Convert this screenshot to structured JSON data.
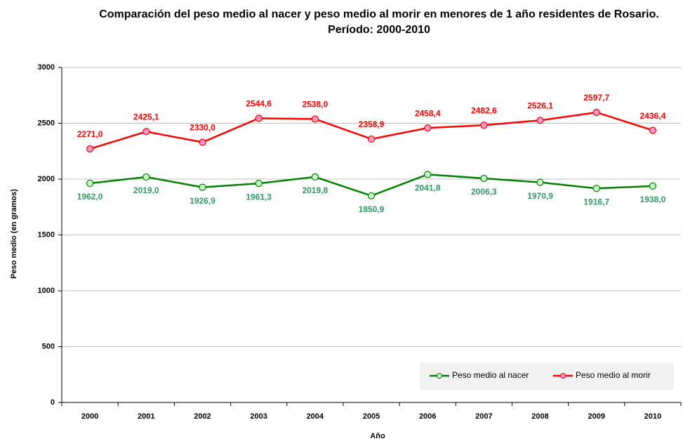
{
  "chart_data": {
    "type": "line",
    "title": "Comparación del peso medio al nacer y peso medio al morir en menores de 1 año residentes de Rosario. Período: 2000-2010",
    "xlabel": "Año",
    "ylabel": "Peso medio (en gramos)",
    "categories": [
      "2000",
      "2001",
      "2002",
      "2003",
      "2004",
      "2005",
      "2006",
      "2007",
      "2008",
      "2009",
      "2010"
    ],
    "series": [
      {
        "name": "Peso medio al nacer",
        "color": "#008000",
        "marker_color": "#ccffcc",
        "label_color": "#339966",
        "values": [
          1962.0,
          2019.0,
          1926.9,
          1961.3,
          2019.8,
          1850.9,
          2041.8,
          2006.3,
          1970.9,
          1916.7,
          1938.0
        ],
        "value_labels": [
          "1962,0",
          "2019,0",
          "1926,9",
          "1961,3",
          "2019,8",
          "1850,9",
          "2041,8",
          "2006,3",
          "1970,9",
          "1916,7",
          "1938,0"
        ]
      },
      {
        "name": "Peso medio al morir",
        "color": "#ff0000",
        "marker_color": "#ff99cc",
        "label_color": "#ff0000",
        "values": [
          2271.0,
          2425.1,
          2330.0,
          2544.6,
          2538.0,
          2358.9,
          2458.4,
          2482.6,
          2526.1,
          2597.7,
          2436.4
        ],
        "value_labels": [
          "2271,0",
          "2425,1",
          "2330,0",
          "2544,6",
          "2538,0",
          "2358,9",
          "2458,4",
          "2482,6",
          "2526,1",
          "2597,7",
          "2436,4"
        ]
      }
    ],
    "ylim": [
      0,
      3000
    ],
    "yticks": [
      0,
      500,
      1000,
      1500,
      2000,
      2500,
      3000
    ],
    "grid": true,
    "legend": "lower right"
  }
}
